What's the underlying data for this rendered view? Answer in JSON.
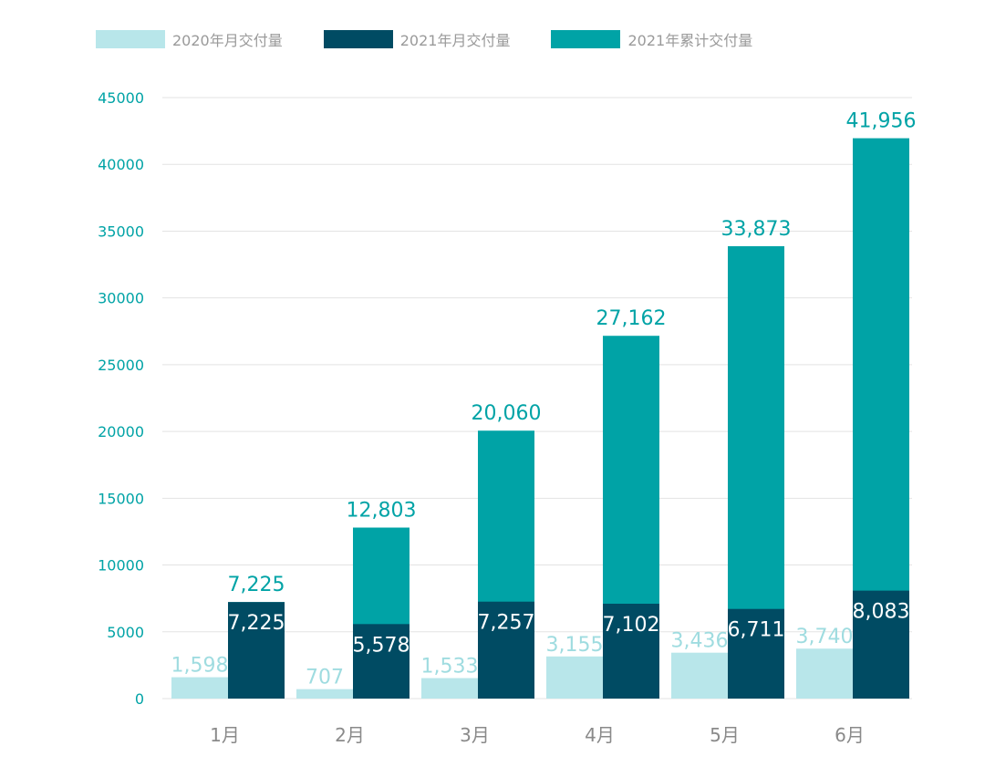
{
  "chart_data": {
    "type": "bar",
    "categories": [
      "1月",
      "2月",
      "3月",
      "4月",
      "5月",
      "6月"
    ],
    "series": [
      {
        "name": "2020年月交付量",
        "values": [
          1598,
          707,
          1533,
          3155,
          3436,
          3740
        ],
        "labels": [
          "1,598",
          "707",
          "1,533",
          "3,155",
          "3,436",
          "3,740"
        ],
        "color": "#b8e6ea",
        "label_color": "#9fdce0"
      },
      {
        "name": "2021年月交付量",
        "values": [
          7225,
          5578,
          7257,
          7102,
          6711,
          8083
        ],
        "labels": [
          "7,225",
          "5,578",
          "7,257",
          "7,102",
          "6,711",
          "8,083"
        ],
        "color": "#004b63",
        "label_color": "#ffffff"
      },
      {
        "name": "2021年累计交付量",
        "values": [
          7225,
          12803,
          20060,
          27162,
          33873,
          41956
        ],
        "labels": [
          "7,225",
          "12,803",
          "20,060",
          "27,162",
          "33,873",
          "41,956"
        ],
        "color": "#00a3a6",
        "label_color": "#00a3a6"
      }
    ],
    "yticks": [
      "0",
      "5000",
      "10000",
      "15000",
      "20000",
      "25000",
      "30000",
      "35000",
      "40000",
      "45000"
    ],
    "ylim": [
      0,
      45000
    ],
    "legend_position": "top-left",
    "grid": true,
    "axis_tick_color": "#00a3a6",
    "category_label_color": "#8a8a8a",
    "grid_color": "#e3e3e3"
  }
}
